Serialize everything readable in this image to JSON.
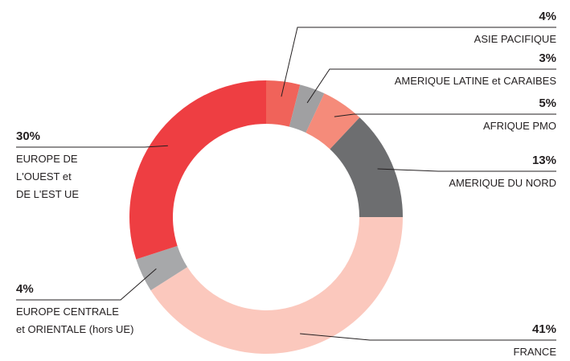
{
  "chart_data": {
    "type": "donut",
    "categories": [
      "ASIE PACIFIQUE",
      "AMERIQUE LATINE et CARAIBES",
      "AFRIQUE PMO",
      "AMERIQUE DU NORD",
      "FRANCE",
      "EUROPE CENTRALE\net ORIENTALE (hors UE)",
      "EUROPE DE\nL'OUEST et\nDE L'EST UE"
    ],
    "values": [
      4,
      3,
      5,
      13,
      41,
      4,
      30
    ],
    "value_labels": [
      "4%",
      "3%",
      "5%",
      "13%",
      "41%",
      "4%",
      "30%"
    ],
    "colors": [
      "#f0635a",
      "#a0a0a2",
      "#f58b7a",
      "#6d6e70",
      "#fbc8bd",
      "#a7a8aa",
      "#ee3e42"
    ]
  }
}
